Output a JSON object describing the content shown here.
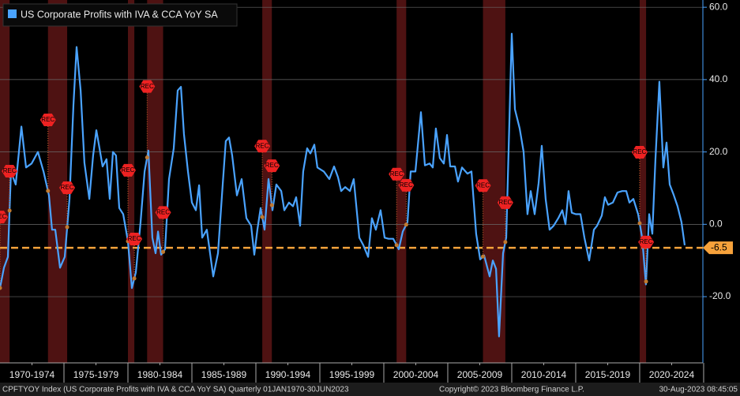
{
  "chart_data": {
    "type": "line",
    "x": [
      1970.0,
      1970.31,
      1970.62,
      1970.86,
      1971.23,
      1971.67,
      1972.04,
      1972.47,
      1972.96,
      1973.4,
      1973.83,
      1974.07,
      1974.32,
      1974.69,
      1975.06,
      1975.43,
      1975.74,
      1975.99,
      1976.3,
      1976.6,
      1976.98,
      1977.28,
      1977.53,
      1977.78,
      1978.02,
      1978.33,
      1978.58,
      1978.83,
      1979.07,
      1979.32,
      1979.63,
      1980.0,
      1980.31,
      1980.62,
      1980.99,
      1981.3,
      1981.6,
      1981.91,
      1982.16,
      1982.35,
      1982.59,
      1982.9,
      1983.21,
      1983.58,
      1983.89,
      1984.14,
      1984.38,
      1984.69,
      1985.0,
      1985.31,
      1985.56,
      1985.8,
      1986.17,
      1986.67,
      1987.04,
      1987.41,
      1987.65,
      1987.9,
      1988.15,
      1988.52,
      1988.89,
      1989.26,
      1989.63,
      1989.88,
      1990.12,
      1990.37,
      1990.68,
      1990.99,
      1991.3,
      1991.6,
      1991.98,
      1992.22,
      1992.59,
      1992.9,
      1993.15,
      1993.46,
      1993.7,
      1994.01,
      1994.26,
      1994.57,
      1994.81,
      1995.31,
      1995.74,
      1996.11,
      1996.42,
      1996.67,
      1996.98,
      1997.35,
      1997.65,
      1998.09,
      1998.4,
      1998.77,
      1999.07,
      1999.38,
      1999.75,
      2000.06,
      2000.37,
      2000.74,
      2001.17,
      2001.48,
      2001.85,
      2002.1,
      2002.47,
      2002.9,
      2003.21,
      2003.58,
      2003.83,
      2004.07,
      2004.38,
      2004.69,
      2004.94,
      2005.19,
      2005.56,
      2005.8,
      2006.11,
      2006.54,
      2006.85,
      2007.22,
      2007.53,
      2007.84,
      2008.27,
      2008.52,
      2008.77,
      2009.01,
      2009.32,
      2009.57,
      2010.0,
      2010.25,
      2010.62,
      2010.93,
      2011.23,
      2011.48,
      2011.79,
      2012.1,
      2012.35,
      2012.65,
      2012.96,
      2013.27,
      2013.64,
      2013.95,
      2014.2,
      2014.44,
      2014.69,
      2015.0,
      2015.37,
      2015.68,
      2016.05,
      2016.42,
      2016.67,
      2017.04,
      2017.28,
      2017.53,
      2017.9,
      2018.27,
      2018.64,
      2018.95,
      2019.2,
      2019.51,
      2019.88,
      2020.19,
      2020.49,
      2020.74,
      2020.99,
      2021.23,
      2021.54,
      2021.85,
      2022.1,
      2022.35,
      2022.65,
      2022.96,
      2023.27,
      2023.52
    ],
    "series": [
      {
        "name": "US Corporate Profits with IVA & CCA YoY SA",
        "color": "#4aa3ff",
        "values": [
          -17.6,
          -12,
          -9,
          14.6,
          11,
          27,
          15.7,
          16.8,
          20,
          14.6,
          8,
          -1.5,
          -1.5,
          -12,
          -9,
          7,
          33,
          49,
          37,
          17,
          7,
          19,
          26,
          21,
          16,
          18,
          7,
          20,
          19,
          4.5,
          2.8,
          -4.7,
          -17.6,
          -13.3,
          0.6,
          14.6,
          20.4,
          -3.7,
          -8,
          -2,
          -8.4,
          -6.9,
          12.5,
          21,
          37,
          38,
          25,
          14.6,
          6,
          3.9,
          10.8,
          -3.7,
          -1.5,
          -14.4,
          -8,
          11,
          23,
          24,
          19,
          8,
          12.5,
          1.7,
          -0.4,
          -8.4,
          -1.5,
          4.5,
          -1.5,
          12.5,
          3.9,
          11,
          9.2,
          3.9,
          6,
          5,
          7.5,
          -0.4,
          14.6,
          21,
          19.6,
          22,
          15.7,
          14.6,
          12.5,
          16,
          13,
          9.2,
          10.3,
          9.2,
          12.5,
          -3.7,
          -5.8,
          -9,
          1.7,
          -1.5,
          3.9,
          -3.7,
          -4,
          -4,
          -6.9,
          -2,
          0.6,
          14.6,
          14.6,
          31,
          16.3,
          16.8,
          15.7,
          26.5,
          18.3,
          16.8,
          24.7,
          16,
          16,
          11.8,
          15.7,
          14,
          14.6,
          -2.6,
          -9.7,
          -8.6,
          -14.4,
          -10,
          -12.3,
          -31,
          -8,
          -3.7,
          52.7,
          31.8,
          26.5,
          20,
          2.8,
          9.2,
          2.8,
          11.4,
          21.7,
          7,
          -1.5,
          -0.4,
          1.7,
          3.9,
          0,
          9.2,
          3.2,
          2.8,
          2.8,
          -3.7,
          -10,
          -1.5,
          -0.4,
          2.4,
          7.5,
          5.4,
          6,
          8.8,
          9.2,
          9.2,
          6,
          7,
          2.8,
          -3.7,
          -16.6,
          2.8,
          -2.6,
          17.8,
          39.4,
          15.7,
          22.6,
          11,
          8.2,
          5,
          0.6,
          -5.8
        ]
      }
    ],
    "recessions": [
      [
        1970.0,
        1970.75
      ],
      [
        1973.75,
        1975.25
      ],
      [
        1980.0,
        1980.5
      ],
      [
        1981.5,
        1982.75
      ],
      [
        1990.5,
        1991.25
      ],
      [
        2001.0,
        2001.75
      ],
      [
        2007.75,
        2009.5
      ],
      [
        2020.0,
        2020.5
      ]
    ],
    "recession_label": "REC",
    "reference_line": {
      "value": -6.5,
      "color": "#f7a23b"
    },
    "xlim": [
      1970,
      2024.94
    ],
    "ylim": [
      -38.3,
      62
    ],
    "yticks": [
      {
        "value": 60,
        "label": "60.0"
      },
      {
        "value": 40,
        "label": "40.0"
      },
      {
        "value": 20,
        "label": "20.0"
      },
      {
        "value": 0,
        "label": "0.0"
      },
      {
        "value": -20,
        "label": "-20.0"
      }
    ],
    "xticks": [
      {
        "value": 1972.5,
        "label": "1970-1974"
      },
      {
        "value": 1977.5,
        "label": "1975-1979"
      },
      {
        "value": 1982.5,
        "label": "1980-1984"
      },
      {
        "value": 1987.5,
        "label": "1985-1989"
      },
      {
        "value": 1992.5,
        "label": "1990-1994"
      },
      {
        "value": 1997.5,
        "label": "1995-1999"
      },
      {
        "value": 2002.5,
        "label": "2000-2004"
      },
      {
        "value": 2007.5,
        "label": "2005-2009"
      },
      {
        "value": 2012.5,
        "label": "2010-2014"
      },
      {
        "value": 2017.5,
        "label": "2015-2019"
      },
      {
        "value": 2022.5,
        "label": "2020-2024"
      }
    ],
    "grid": true,
    "legend": "top-left",
    "annotations": [
      "CPFTYOY Index (US Corporate Profits with IVA & CCA YoY SA)  Quarterly 01JAN1970-30JUN2023",
      "Copyright© 2023 Bloomberg Finance L.P.",
      "30-Aug-2023 08:45:05"
    ]
  }
}
